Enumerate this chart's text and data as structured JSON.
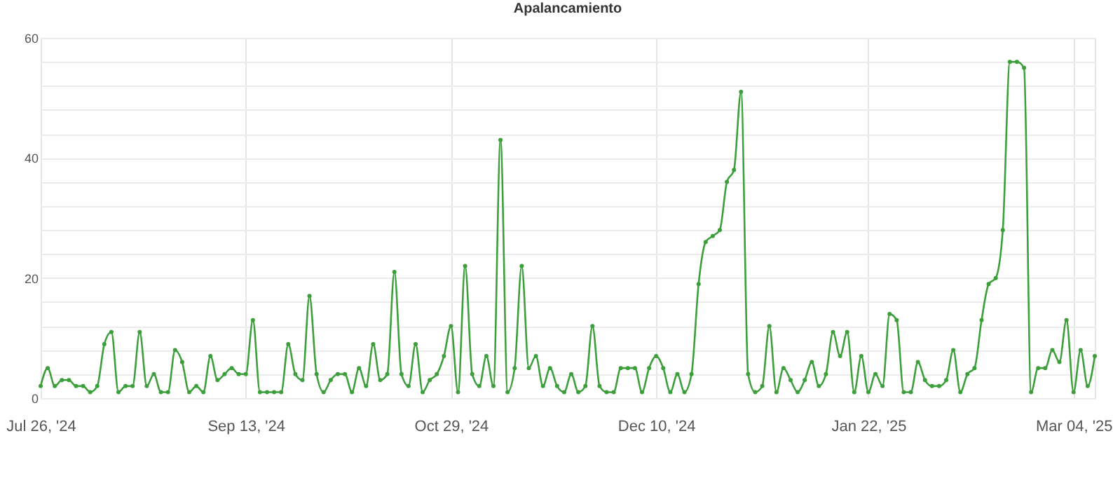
{
  "chart_data": {
    "type": "line",
    "title": "Apalancamiento",
    "categories": [
      "Jul 26, '24",
      null,
      null,
      null,
      null,
      null,
      null,
      null,
      null,
      null,
      null,
      null,
      null,
      null,
      null,
      null,
      null,
      null,
      null,
      null,
      null,
      null,
      null,
      null,
      null,
      null,
      null,
      null,
      null,
      "Sep 13, '24",
      null,
      null,
      null,
      null,
      null,
      null,
      null,
      null,
      null,
      null,
      null,
      null,
      null,
      null,
      null,
      null,
      null,
      null,
      null,
      null,
      null,
      null,
      null,
      null,
      null,
      null,
      null,
      null,
      "Oct 29, '24",
      null,
      null,
      null,
      null,
      null,
      null,
      null,
      null,
      null,
      null,
      null,
      null,
      null,
      null,
      null,
      null,
      null,
      null,
      null,
      null,
      null,
      null,
      null,
      null,
      null,
      null,
      null,
      null,
      "Dec 10, '24",
      null,
      null,
      null,
      null,
      null,
      null,
      null,
      null,
      null,
      null,
      null,
      null,
      null,
      null,
      null,
      null,
      null,
      null,
      null,
      null,
      null,
      null,
      null,
      null,
      null,
      null,
      null,
      null,
      null,
      "Jan 22, '25",
      null,
      null,
      null,
      null,
      null,
      null,
      null,
      null,
      null,
      null,
      null,
      null,
      null,
      null,
      null,
      null,
      null,
      null,
      null,
      null,
      null,
      null,
      null,
      null,
      null,
      null,
      null,
      null,
      "Mar 04, '25",
      null,
      null,
      null
    ],
    "series": [
      {
        "color": "#3c9f3c",
        "values": [
          2,
          5,
          2,
          3,
          3,
          2,
          2,
          1,
          2,
          9,
          11,
          1,
          2,
          2,
          11,
          2,
          4,
          1,
          1,
          8,
          6,
          1,
          2,
          1,
          7,
          3,
          4,
          5,
          4,
          4,
          13,
          1,
          1,
          1,
          1,
          9,
          4,
          3,
          17,
          4,
          1,
          3,
          4,
          4,
          1,
          5,
          2,
          9,
          3,
          4,
          21,
          4,
          2,
          9,
          1,
          3,
          4,
          7,
          12,
          1,
          22,
          4,
          2,
          7,
          2,
          43,
          1,
          5,
          22,
          5,
          7,
          2,
          5,
          2,
          1,
          4,
          1,
          2,
          12,
          2,
          1,
          1,
          5,
          5,
          5,
          1,
          5,
          7,
          5,
          1,
          4,
          1,
          4,
          19,
          26,
          27,
          28,
          36,
          38,
          51,
          4,
          1,
          2,
          12,
          1,
          5,
          3,
          1,
          3,
          6,
          2,
          4,
          11,
          7,
          11,
          1,
          7,
          1,
          4,
          2,
          14,
          13,
          1,
          1,
          6,
          3,
          2,
          2,
          3,
          8,
          1,
          4,
          5,
          13,
          19,
          20,
          28,
          56,
          56,
          55,
          1,
          5,
          5,
          8,
          6,
          13,
          1,
          8,
          2,
          7
        ]
      }
    ],
    "ylim": [
      0,
      60
    ],
    "yticks": [
      0,
      {
        "value": 4,
        "label": null
      },
      {
        "value": 8,
        "label": null
      },
      {
        "value": 12,
        "label": null
      },
      {
        "value": 16,
        "label": null
      },
      20,
      {
        "value": 24,
        "label": null
      },
      {
        "value": 28,
        "label": null
      },
      {
        "value": 32,
        "label": null
      },
      {
        "value": 36,
        "label": null
      },
      40,
      {
        "value": 44,
        "label": null
      },
      {
        "value": 48,
        "label": null
      },
      {
        "value": 52,
        "label": null
      },
      {
        "value": 56,
        "label": null
      },
      60
    ],
    "grid": true,
    "marker": "circle",
    "line_style": "solid"
  }
}
